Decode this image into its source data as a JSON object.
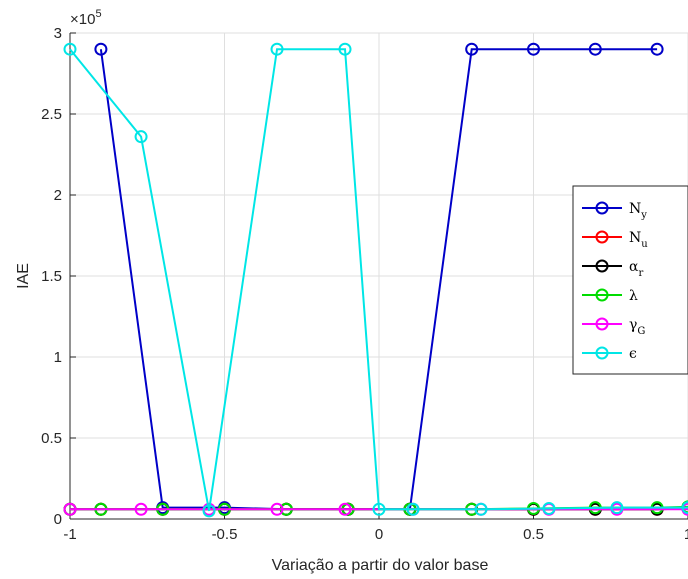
{
  "chart_data": {
    "type": "line",
    "xlabel": "Variação a partir do valor base",
    "ylabel": "IAE",
    "xlim": [
      -1,
      1
    ],
    "ylim": [
      0,
      300000
    ],
    "y_exponent_label": "×10",
    "y_exponent_power": "5",
    "xticks": [
      -1,
      -0.5,
      0,
      0.5,
      1
    ],
    "xtick_labels": [
      "-1",
      "-0.5",
      "0",
      "0.5",
      "1"
    ],
    "yticks": [
      0,
      50000,
      100000,
      150000,
      200000,
      250000,
      300000
    ],
    "ytick_labels": [
      "0",
      "0.5",
      "1",
      "1.5",
      "2",
      "2.5",
      "3"
    ],
    "grid": true,
    "legend_position": "right",
    "series": [
      {
        "name": "N",
        "subscript": "y",
        "color": "#0000c8",
        "x": [
          -0.9,
          -0.7,
          -0.5,
          -0.3,
          -0.1,
          0.1,
          0.3,
          0.5,
          0.7,
          0.9
        ],
        "y": [
          290000,
          7000,
          7000,
          6000,
          6000,
          6000,
          290000,
          290000,
          290000,
          290000
        ]
      },
      {
        "name": "N",
        "subscript": "u",
        "color": "#ff0000",
        "x": [
          -1,
          -0.9,
          -0.7,
          -0.5,
          -0.3,
          -0.1,
          0.1,
          0.3,
          0.5,
          0.7,
          0.9,
          1
        ],
        "y": [
          6000,
          6000,
          6000,
          6000,
          6000,
          6000,
          6000,
          6000,
          6000,
          6000,
          6000,
          6500
        ]
      },
      {
        "name": "α",
        "subscript": "r",
        "color": "#000000",
        "x": [
          -1,
          -0.9,
          -0.7,
          -0.5,
          -0.3,
          -0.1,
          0.1,
          0.3,
          0.5,
          0.7,
          0.9,
          1
        ],
        "y": [
          6000,
          6000,
          6000,
          6000,
          6000,
          6000,
          6000,
          6000,
          6000,
          6000,
          6000,
          6500
        ]
      },
      {
        "name": "λ",
        "subscript": "",
        "color": "#00dc00",
        "x": [
          -1,
          -0.9,
          -0.7,
          -0.5,
          -0.3,
          -0.1,
          0.1,
          0.3,
          0.5,
          0.7,
          0.9,
          1
        ],
        "y": [
          6000,
          6000,
          6000,
          6000,
          6000,
          6000,
          6000,
          6000,
          6500,
          7000,
          7000,
          7500
        ]
      },
      {
        "name": "γ",
        "subscript": "G",
        "color": "#ff00ff",
        "x": [
          -1,
          -0.77,
          -0.55,
          -0.33,
          -0.11,
          0.11,
          0.33,
          0.55,
          0.77,
          1
        ],
        "y": [
          6000,
          6000,
          6000,
          6000,
          6000,
          6000,
          6000,
          6000,
          6000,
          6000
        ]
      },
      {
        "name": "ϵ",
        "subscript": "",
        "color": "#00e6e6",
        "x": [
          -1,
          -0.77,
          -0.55,
          -0.33,
          -0.11,
          0,
          0.11,
          0.33,
          0.55,
          0.77,
          1
        ],
        "y": [
          290000,
          236000,
          5000,
          290000,
          290000,
          6000,
          6000,
          6000,
          6500,
          7000,
          7000
        ]
      }
    ]
  }
}
